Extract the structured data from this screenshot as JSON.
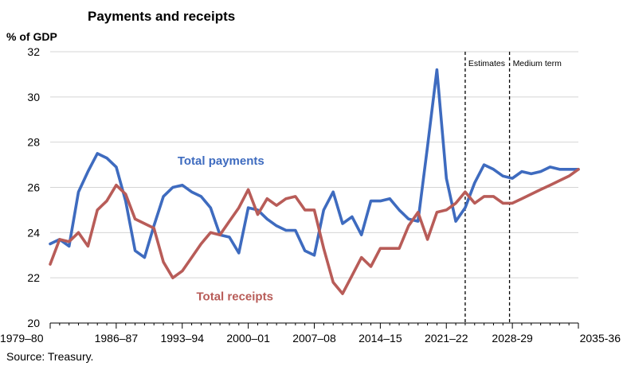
{
  "chart_data": {
    "type": "line",
    "title": "Payments and receipts",
    "ylabel": "% of GDP",
    "source": "Source:    Treasury.",
    "ylim": [
      20,
      32
    ],
    "yticks": [
      20,
      22,
      24,
      26,
      28,
      30,
      32
    ],
    "x_tick_labels": [
      "1979–80",
      "1986–87",
      "1993–94",
      "2000–01",
      "2007–08",
      "2014–15",
      "2021–22",
      "2028-29",
      "2035-36"
    ],
    "x_tick_years": [
      1979,
      1986,
      1993,
      2000,
      2007,
      2014,
      2021,
      2028,
      2035
    ],
    "grid": "horizontal",
    "sections": [
      {
        "label": "Estimates",
        "start_year": 2023
      },
      {
        "label": "Medium term",
        "start_year": 2027.7
      }
    ],
    "series": [
      {
        "name": "Total payments",
        "color": "#3E6BBF",
        "label_anchor": {
          "x": 1992.5,
          "y": 27.0
        },
        "x": [
          1979,
          1980,
          1981,
          1982,
          1983,
          1984,
          1985,
          1986,
          1987,
          1988,
          1989,
          1990,
          1991,
          1992,
          1993,
          1994,
          1995,
          1996,
          1997,
          1998,
          1999,
          2000,
          2001,
          2002,
          2003,
          2004,
          2005,
          2006,
          2007,
          2008,
          2009,
          2010,
          2011,
          2012,
          2013,
          2014,
          2015,
          2016,
          2017,
          2018,
          2019,
          2020,
          2021,
          2022,
          2023,
          2024,
          2025,
          2026,
          2027,
          2028,
          2029,
          2030,
          2031,
          2032,
          2033,
          2034,
          2035
        ],
        "values": [
          23.5,
          23.7,
          23.4,
          25.8,
          26.7,
          27.5,
          27.3,
          26.9,
          25.4,
          23.2,
          22.9,
          24.3,
          25.6,
          26.0,
          26.1,
          25.8,
          25.6,
          25.1,
          23.9,
          23.8,
          23.1,
          25.1,
          25.0,
          24.6,
          24.3,
          24.1,
          24.1,
          23.2,
          23.0,
          25.0,
          25.8,
          24.4,
          24.7,
          23.9,
          25.4,
          25.4,
          25.5,
          25.0,
          24.6,
          24.5,
          27.8,
          31.2,
          26.4,
          24.5,
          25.1,
          26.2,
          27.0,
          26.8,
          26.5,
          26.4,
          26.7,
          26.6,
          26.7,
          26.9,
          26.8,
          26.8,
          26.8
        ]
      },
      {
        "name": "Total receipts",
        "color": "#B85C58",
        "label_anchor": {
          "x": 1994.5,
          "y": 21.0
        },
        "x": [
          1979,
          1980,
          1981,
          1982,
          1983,
          1984,
          1985,
          1986,
          1987,
          1988,
          1989,
          1990,
          1991,
          1992,
          1993,
          1994,
          1995,
          1996,
          1997,
          1998,
          1999,
          2000,
          2001,
          2002,
          2003,
          2004,
          2005,
          2006,
          2007,
          2008,
          2009,
          2010,
          2011,
          2012,
          2013,
          2014,
          2015,
          2016,
          2017,
          2018,
          2019,
          2020,
          2021,
          2022,
          2023,
          2024,
          2025,
          2026,
          2027,
          2028,
          2029,
          2030,
          2031,
          2032,
          2033,
          2034,
          2035
        ],
        "values": [
          22.6,
          23.7,
          23.6,
          24.0,
          23.4,
          25.0,
          25.4,
          26.1,
          25.7,
          24.6,
          24.4,
          24.2,
          22.7,
          22.0,
          22.3,
          22.9,
          23.5,
          24.0,
          23.9,
          24.5,
          25.1,
          25.9,
          24.8,
          25.5,
          25.2,
          25.5,
          25.6,
          25.0,
          25.0,
          23.3,
          21.8,
          21.3,
          22.1,
          22.9,
          22.5,
          23.3,
          23.3,
          23.3,
          24.3,
          24.9,
          23.7,
          24.9,
          25.0,
          25.3,
          25.8,
          25.3,
          25.6,
          25.6,
          25.3,
          25.3,
          25.5,
          25.7,
          25.9,
          26.1,
          26.3,
          26.5,
          26.8
        ]
      }
    ]
  }
}
